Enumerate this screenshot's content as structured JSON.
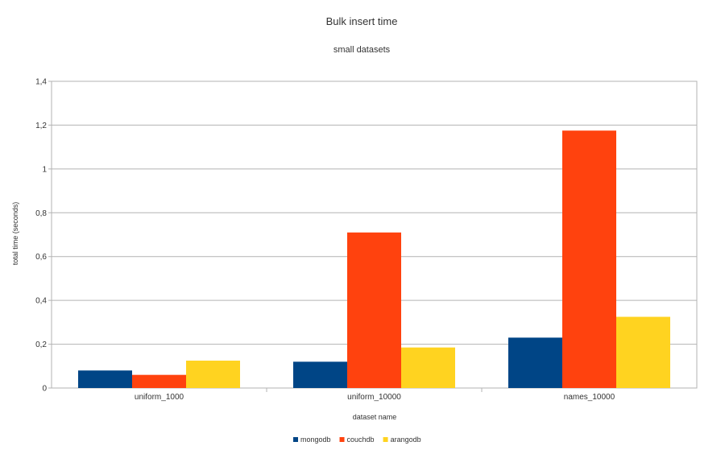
{
  "chart_data": {
    "type": "bar",
    "title": "Bulk insert time",
    "subtitle": "small datasets",
    "xlabel": "dataset name",
    "ylabel": "total time (seconds)",
    "categories": [
      "uniform_1000",
      "uniform_10000",
      "names_10000"
    ],
    "series": [
      {
        "name": "mongodb",
        "color": "#004586",
        "values": [
          0.08,
          0.12,
          0.23
        ]
      },
      {
        "name": "couchdb",
        "color": "#ff420e",
        "values": [
          0.06,
          0.71,
          1.175
        ]
      },
      {
        "name": "arangodb",
        "color": "#ffd320",
        "values": [
          0.125,
          0.185,
          0.325
        ]
      }
    ],
    "ylim": [
      0,
      1.4
    ],
    "yticks": [
      "0",
      "0,2",
      "0,4",
      "0,6",
      "0,8",
      "1",
      "1,2",
      "1,4"
    ],
    "grid": true,
    "legend_position": "bottom"
  }
}
